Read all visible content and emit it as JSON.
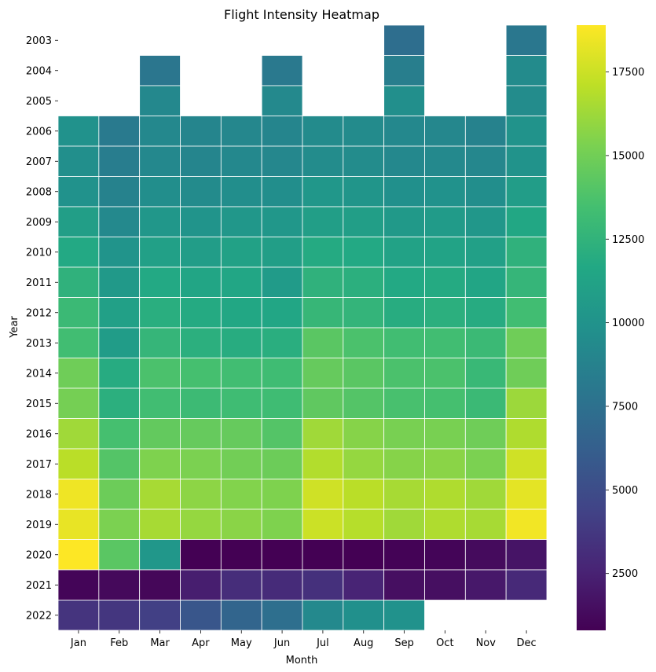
{
  "chart_data": {
    "type": "heatmap",
    "title": "Flight Intensity Heatmap",
    "xlabel": "Month",
    "ylabel": "Year",
    "x_categories": [
      "Jan",
      "Feb",
      "Mar",
      "Apr",
      "May",
      "Jun",
      "Jul",
      "Aug",
      "Sep",
      "Oct",
      "Nov",
      "Dec"
    ],
    "y_categories": [
      "2003",
      "2004",
      "2005",
      "2006",
      "2007",
      "2008",
      "2009",
      "2010",
      "2011",
      "2012",
      "2013",
      "2014",
      "2015",
      "2016",
      "2017",
      "2018",
      "2019",
      "2020",
      "2021",
      "2022"
    ],
    "values": [
      [
        null,
        null,
        null,
        null,
        null,
        null,
        null,
        null,
        7300,
        null,
        null,
        8000
      ],
      [
        null,
        null,
        7900,
        null,
        null,
        8100,
        null,
        null,
        8500,
        null,
        null,
        9400
      ],
      [
        null,
        null,
        9200,
        null,
        null,
        9300,
        null,
        null,
        9700,
        null,
        null,
        9500
      ],
      [
        9900,
        8200,
        9200,
        9000,
        9100,
        9000,
        9400,
        9400,
        9200,
        9100,
        8800,
        10000
      ],
      [
        9700,
        8400,
        9200,
        9000,
        9200,
        9100,
        9500,
        9500,
        9200,
        9300,
        9100,
        10000
      ],
      [
        9900,
        8800,
        9600,
        9400,
        9600,
        9600,
        10300,
        10200,
        9800,
        9900,
        9600,
        10800
      ],
      [
        10900,
        9300,
        10300,
        10100,
        10300,
        10300,
        10900,
        10900,
        10500,
        10600,
        10300,
        11600
      ],
      [
        11700,
        10100,
        11000,
        10800,
        11100,
        10900,
        11800,
        11700,
        11200,
        11300,
        11000,
        12400
      ],
      [
        12400,
        10500,
        11700,
        11400,
        11500,
        10600,
        12400,
        12200,
        11700,
        11800,
        11400,
        12700
      ],
      [
        13000,
        11000,
        12100,
        11800,
        11600,
        11500,
        12800,
        12600,
        12000,
        12200,
        11900,
        13300
      ],
      [
        13300,
        10700,
        12700,
        12200,
        12000,
        12100,
        14200,
        13700,
        13300,
        13300,
        13000,
        14900
      ],
      [
        14900,
        11900,
        13700,
        13500,
        13300,
        13200,
        14600,
        14200,
        13700,
        13700,
        12900,
        14900
      ],
      [
        15100,
        12200,
        13300,
        13100,
        13200,
        13200,
        14400,
        14000,
        13600,
        13500,
        13000,
        16200
      ],
      [
        16300,
        13500,
        14500,
        14600,
        14600,
        14000,
        16300,
        15600,
        15200,
        15200,
        14900,
        16700
      ],
      [
        17000,
        14000,
        15400,
        15300,
        15000,
        14800,
        16800,
        16000,
        15600,
        15700,
        15300,
        17600
      ],
      [
        18500,
        14800,
        16500,
        15800,
        15500,
        15400,
        17600,
        17000,
        16500,
        16700,
        16300,
        18200
      ],
      [
        18300,
        15300,
        16500,
        16000,
        15700,
        15400,
        17500,
        16900,
        16300,
        16700,
        16500,
        18600
      ],
      [
        18900,
        14200,
        10300,
        800,
        700,
        700,
        750,
        800,
        900,
        1000,
        1300,
        1800
      ],
      [
        1000,
        1200,
        1100,
        2300,
        3100,
        3000,
        3300,
        2600,
        1500,
        1500,
        2000,
        2900
      ],
      [
        3500,
        3600,
        4200,
        5600,
        6700,
        7400,
        9300,
        9800,
        9900,
        null,
        null,
        null
      ]
    ],
    "colormap": "viridis",
    "colorbar_range": [
      800,
      18900
    ],
    "colorbar_ticks": [
      2500,
      5000,
      7500,
      10000,
      12500,
      15000,
      17500
    ],
    "colorbar_tick_labels": [
      "2500",
      "5000",
      "7500",
      "10000",
      "12500",
      "15000",
      "17500"
    ],
    "grid_line_color": "#ffffff",
    "missing_cells": "blank"
  }
}
